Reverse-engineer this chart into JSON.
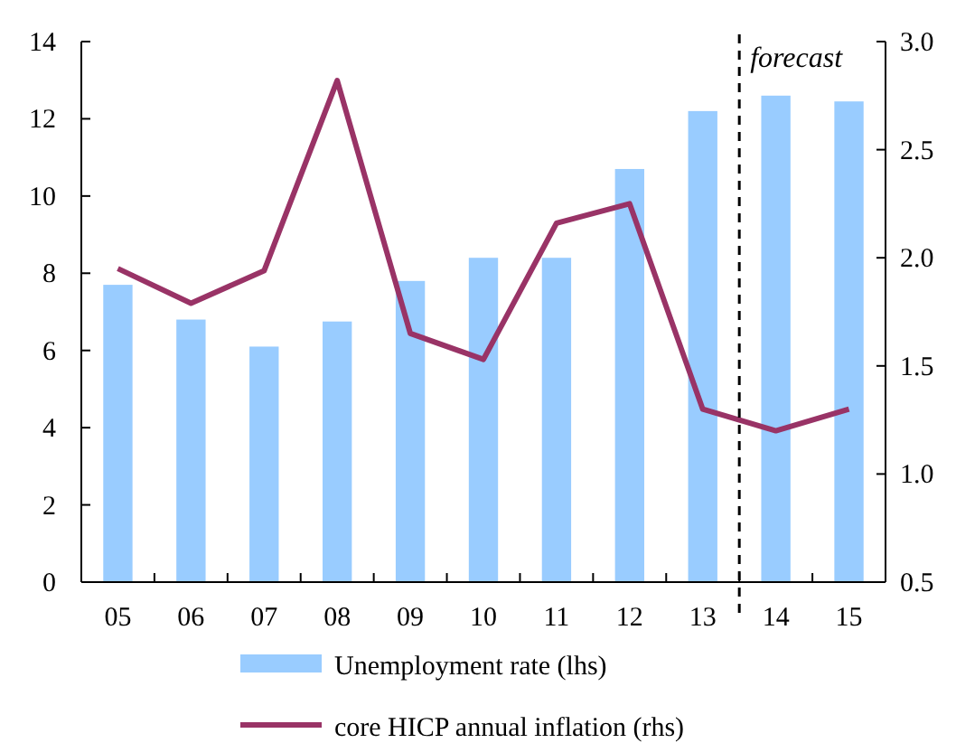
{
  "chart_data": {
    "type": "bar",
    "categories": [
      "05",
      "06",
      "07",
      "08",
      "09",
      "10",
      "11",
      "12",
      "13",
      "14",
      "15"
    ],
    "series": [
      {
        "name": "Unemployment rate (lhs)",
        "color": "#99ccff",
        "values": [
          7.7,
          6.8,
          6.1,
          6.75,
          7.8,
          8.4,
          8.4,
          10.7,
          12.2,
          12.6,
          12.45
        ]
      },
      {
        "name": "core HICP annual inflation (rhs)",
        "type": "line",
        "axis": "y2",
        "color": "#993366",
        "values": [
          1.95,
          1.79,
          1.94,
          2.82,
          1.65,
          1.53,
          2.16,
          2.25,
          1.3,
          1.2,
          1.3
        ]
      }
    ],
    "ylim": [
      0,
      14
    ],
    "yticks": [
      0,
      2,
      4,
      6,
      8,
      10,
      12,
      14
    ],
    "y2lim": [
      0.5,
      3.0
    ],
    "y2ticks": [
      {
        "value": 0.5,
        "label": "0.5"
      },
      {
        "value": 1,
        "label": "1.0"
      },
      {
        "value": 1.5,
        "label": "1.5"
      },
      {
        "value": 2,
        "label": "2.0"
      },
      {
        "value": 2.5,
        "label": "2.5"
      },
      {
        "value": 3,
        "label": "3.0"
      }
    ],
    "annotations": [
      "forecast"
    ],
    "legend": "bottom",
    "grid": false
  }
}
